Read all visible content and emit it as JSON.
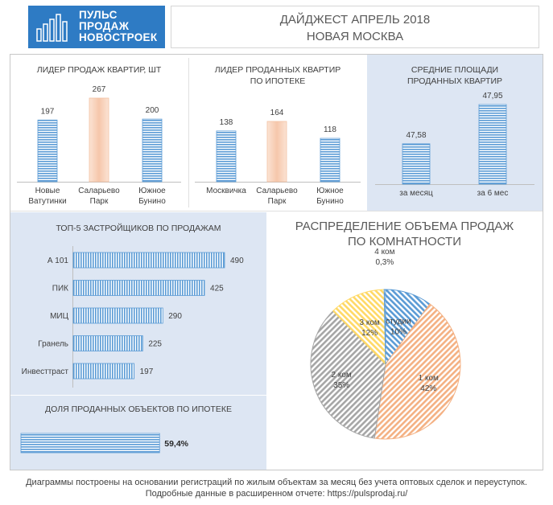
{
  "header": {
    "logo_lines": [
      "ПУЛЬС",
      "ПРОДАЖ",
      "НОВОСТРОЕК"
    ],
    "title": "ДАЙДЖЕСТ АПРЕЛЬ 2018",
    "subtitle": "НОВАЯ МОСКВА"
  },
  "panels": {
    "leader_sales_title": "ЛИДЕР ПРОДАЖ  КВАРТИР, ШТ",
    "leader_mortgage_title": [
      "ЛИДЕР ПРОДАННЫХ КВАРТИР",
      "ПО ИПОТЕКЕ"
    ],
    "avg_area_title": [
      "СРЕДНИЕ ПЛОЩАДИ",
      "ПРОДАННЫХ КВАРТИР"
    ],
    "top5_title": "ТОП-5 ЗАСТРОЙЩИКОВ ПО ПРОДАЖАМ",
    "mortgage_share_title": "ДОЛЯ ПРОДАННЫХ ОБЪЕКТОВ ПО ИПОТЕКЕ",
    "distribution_title": [
      "РАСПРЕДЕЛЕНИЕ ОБЪЕМА ПРОДАЖ",
      "ПО КОМНАТНОСТИ"
    ]
  },
  "colors": {
    "blue": "#5b9bd5",
    "peach": "#f8cbad",
    "orange": "#f4b183",
    "gray": "#a6a6a6",
    "yellow": "#ffd966",
    "panel_bg": "#dde6f3"
  },
  "chart_data": [
    {
      "type": "bar",
      "title": "ЛИДЕР ПРОДАЖ  КВАРТИР, ШТ",
      "categories": [
        [
          "Новые",
          "Ватутинки"
        ],
        [
          "Саларьево",
          "Парк"
        ],
        [
          "Южное",
          "Бунино"
        ]
      ],
      "values": [
        197,
        267,
        200
      ],
      "labels": [
        "197",
        "267",
        "200"
      ],
      "highlight_index": 1,
      "ylim": [
        0,
        267
      ]
    },
    {
      "type": "bar",
      "title": "ЛИДЕР ПРОДАННЫХ КВАРТИР ПО ИПОТЕКЕ",
      "categories": [
        [
          "Москвичка"
        ],
        [
          "Саларьево",
          "Парк"
        ],
        [
          "Южное",
          "Бунино"
        ]
      ],
      "values": [
        138,
        164,
        118
      ],
      "labels": [
        "138",
        "164",
        "118"
      ],
      "highlight_index": 1,
      "ylim": [
        0,
        164
      ]
    },
    {
      "type": "bar",
      "title": "СРЕДНИЕ ПЛОЩАДИ ПРОДАННЫХ КВАРТИР",
      "categories": [
        [
          "за месяц"
        ],
        [
          "за 6 мес"
        ]
      ],
      "values": [
        47.58,
        47.95
      ],
      "labels": [
        "47,58",
        "47,95"
      ],
      "ylim": [
        47.2,
        47.95
      ]
    },
    {
      "type": "bar",
      "orientation": "horizontal",
      "title": "ТОП-5 ЗАСТРОЙЩИКОВ ПО ПРОДАЖАМ",
      "categories": [
        "А 101",
        "ПИК",
        "МИЦ",
        "Гранель",
        "Инвесттраст"
      ],
      "values": [
        490,
        425,
        290,
        225,
        197
      ],
      "labels": [
        "490",
        "425",
        "290",
        "225",
        "197"
      ],
      "xlim": [
        0,
        490
      ]
    },
    {
      "type": "bar",
      "orientation": "horizontal",
      "title": "ДОЛЯ ПРОДАННЫХ ОБЪЕКТОВ ПО ИПОТЕКЕ",
      "values": [
        59.4
      ],
      "labels": [
        "59,4%"
      ],
      "xlim": [
        0,
        100
      ]
    },
    {
      "type": "pie",
      "title": "РАСПРЕДЕЛЕНИЕ ОБЪЕМА ПРОДАЖ ПО КОМНАТНОСТИ",
      "slices": [
        {
          "name": "студии",
          "value": 10,
          "label": "10%"
        },
        {
          "name": "1 ком",
          "value": 42,
          "label": "42%"
        },
        {
          "name": "2 ком",
          "value": 35,
          "label": "35%"
        },
        {
          "name": "3 ком",
          "value": 12,
          "label": "12%"
        },
        {
          "name": "4 ком",
          "value": 0.3,
          "label": "0,3%"
        }
      ]
    }
  ],
  "footer": {
    "line1": "Диаграммы построены на основании регистраций по жилым объектам за месяц без учета оптовых сделок и переуступок.",
    "line2": "Подробные данные в расширенном отчете: https://pulsprodaj.ru/"
  }
}
